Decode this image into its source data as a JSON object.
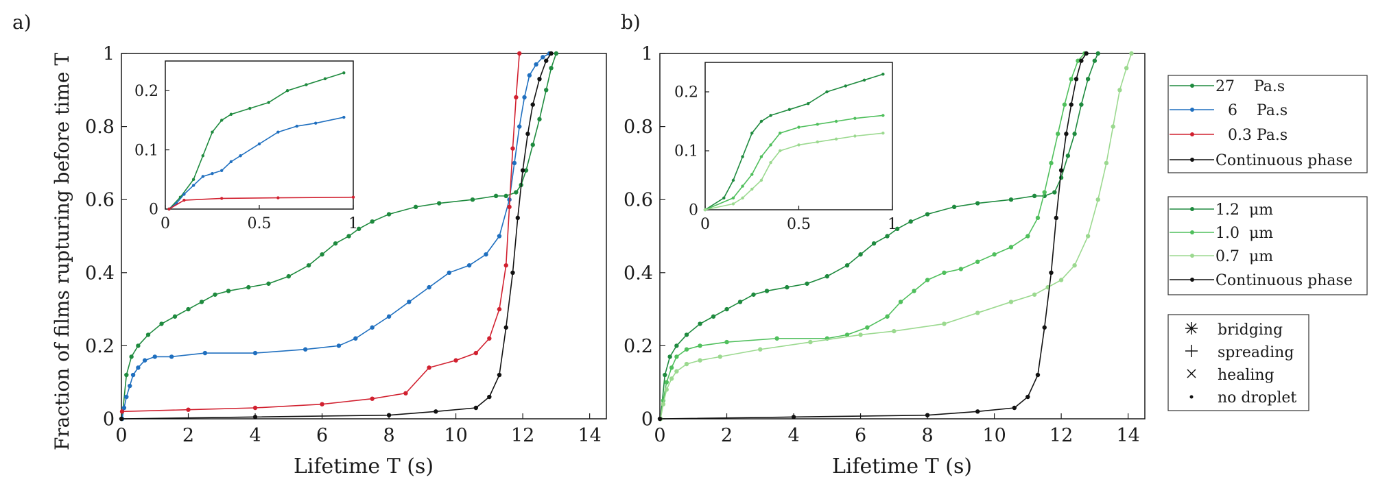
{
  "panel_labels": {
    "a": "a)",
    "b": "b)"
  },
  "axis_labels": {
    "ylabel": "Fraction of films rupturing before time T",
    "xlabel_a": "Lifetime T (s)",
    "xlabel_b": "Lifetime T (s)"
  },
  "legends": {
    "viscosity": [
      "27    Pa.s",
      "6    Pa.s",
      "0.3 Pa.s",
      "Continuous phase"
    ],
    "thickness": [
      "1.2  μm",
      "1.0  μm",
      "0.7  μm",
      "Continuous phase"
    ],
    "markers": [
      "bridging",
      "spreading",
      "healing",
      "no droplet"
    ]
  },
  "colors": {
    "dark_green": "#1e8a3e",
    "mid_green": "#4fbf5c",
    "light_green": "#9bd98f",
    "blue": "#1f6fbf",
    "red": "#d1202f",
    "black": "#111111",
    "blue_marker": "#4a92d6"
  },
  "chart_data": [
    {
      "type": "line",
      "panel": "a",
      "xlabel": "Lifetime T (s)",
      "ylabel": "Fraction of films rupturing before time T",
      "xlim": [
        0,
        14.5
      ],
      "ylim": [
        0,
        1
      ],
      "xticks": [
        0,
        2,
        4,
        6,
        8,
        10,
        12,
        14
      ],
      "yticks": [
        0,
        0.2,
        0.4,
        0.6,
        0.8,
        1
      ],
      "grid": false,
      "series": [
        {
          "name": "27    Pa.s",
          "color": "#1e8a3e",
          "x": [
            0.02,
            0.15,
            0.3,
            0.5,
            0.8,
            1.2,
            1.6,
            2.0,
            2.4,
            2.8,
            3.2,
            3.8,
            4.4,
            5.0,
            5.6,
            6.0,
            6.4,
            6.8,
            7.1,
            7.5,
            8.0,
            8.8,
            9.5,
            10.5,
            11.2,
            11.5,
            11.8,
            11.95,
            12.1,
            12.3,
            12.5,
            12.7,
            12.85,
            13.0
          ],
          "y": [
            0.0,
            0.12,
            0.17,
            0.2,
            0.23,
            0.26,
            0.28,
            0.3,
            0.32,
            0.34,
            0.35,
            0.36,
            0.37,
            0.39,
            0.42,
            0.45,
            0.48,
            0.5,
            0.52,
            0.54,
            0.56,
            0.58,
            0.59,
            0.6,
            0.61,
            0.61,
            0.62,
            0.64,
            0.68,
            0.75,
            0.82,
            0.9,
            0.96,
            1.0
          ]
        },
        {
          "name": "6    Pa.s",
          "color": "#1f6fbf",
          "x": [
            0.02,
            0.08,
            0.15,
            0.25,
            0.35,
            0.5,
            0.7,
            1.0,
            1.5,
            2.5,
            4.0,
            5.5,
            6.5,
            7.0,
            7.5,
            8.0,
            8.6,
            9.2,
            9.8,
            10.4,
            10.9,
            11.3,
            11.6,
            11.75,
            11.9,
            12.05,
            12.2,
            12.4,
            12.6,
            12.8
          ],
          "y": [
            0.0,
            0.03,
            0.06,
            0.09,
            0.12,
            0.14,
            0.16,
            0.17,
            0.17,
            0.18,
            0.18,
            0.19,
            0.2,
            0.22,
            0.25,
            0.28,
            0.32,
            0.36,
            0.4,
            0.42,
            0.45,
            0.5,
            0.6,
            0.7,
            0.8,
            0.88,
            0.94,
            0.97,
            0.99,
            1.0
          ]
        },
        {
          "name": "0.3 Pa.s",
          "color": "#d1202f",
          "x": [
            0.02,
            2.0,
            4.0,
            6.0,
            7.5,
            8.5,
            9.2,
            10.0,
            10.6,
            11.0,
            11.3,
            11.5,
            11.6,
            11.7,
            11.8,
            11.9
          ],
          "y": [
            0.02,
            0.025,
            0.03,
            0.04,
            0.055,
            0.07,
            0.14,
            0.16,
            0.18,
            0.22,
            0.3,
            0.42,
            0.58,
            0.74,
            0.88,
            1.0
          ]
        },
        {
          "name": "Continuous phase",
          "color": "#111111",
          "x": [
            0.0,
            4.0,
            8.0,
            9.4,
            10.6,
            11.0,
            11.3,
            11.5,
            11.7,
            11.85,
            12.0,
            12.15,
            12.3,
            12.5,
            12.7,
            12.85
          ],
          "y": [
            0.0,
            0.005,
            0.01,
            0.02,
            0.03,
            0.06,
            0.12,
            0.25,
            0.4,
            0.55,
            0.68,
            0.78,
            0.86,
            0.93,
            0.98,
            1.0
          ]
        }
      ],
      "inset": {
        "xlim": [
          0,
          1
        ],
        "ylim": [
          0,
          0.25
        ],
        "xticks": [
          0,
          0.5,
          1
        ],
        "yticks": [
          0,
          0.1,
          0.2
        ],
        "series": [
          {
            "name": "27    Pa.s",
            "color": "#1e8a3e",
            "x": [
              0.02,
              0.08,
              0.15,
              0.2,
              0.25,
              0.3,
              0.35,
              0.45,
              0.55,
              0.65,
              0.75,
              0.85,
              0.95
            ],
            "y": [
              0.0,
              0.02,
              0.05,
              0.09,
              0.13,
              0.15,
              0.16,
              0.17,
              0.18,
              0.2,
              0.21,
              0.22,
              0.23
            ]
          },
          {
            "name": "6    Pa.s",
            "color": "#1f6fbf",
            "x": [
              0.02,
              0.06,
              0.1,
              0.15,
              0.2,
              0.25,
              0.3,
              0.35,
              0.4,
              0.5,
              0.6,
              0.7,
              0.8,
              0.95
            ],
            "y": [
              0.0,
              0.01,
              0.025,
              0.04,
              0.055,
              0.06,
              0.065,
              0.08,
              0.09,
              0.11,
              0.13,
              0.14,
              0.145,
              0.155
            ]
          },
          {
            "name": "0.3 Pa.s",
            "color": "#d1202f",
            "x": [
              0.02,
              0.1,
              0.3,
              0.6,
              1.0
            ],
            "y": [
              0.0,
              0.015,
              0.018,
              0.019,
              0.02
            ]
          }
        ]
      }
    },
    {
      "type": "line",
      "panel": "b",
      "xlabel": "Lifetime T (s)",
      "xlim": [
        0,
        14.5
      ],
      "ylim": [
        0,
        1
      ],
      "xticks": [
        0,
        2,
        4,
        6,
        8,
        10,
        12,
        14
      ],
      "yticks": [
        0,
        0.2,
        0.4,
        0.6,
        0.8,
        1
      ],
      "grid": false,
      "series": [
        {
          "name": "1.2  μm",
          "color": "#1e8a3e",
          "x": [
            0.02,
            0.15,
            0.3,
            0.5,
            0.8,
            1.2,
            1.6,
            2.0,
            2.4,
            2.8,
            3.2,
            3.8,
            4.4,
            5.0,
            5.6,
            6.0,
            6.4,
            6.8,
            7.1,
            7.5,
            8.0,
            8.8,
            9.5,
            10.5,
            11.2,
            11.5,
            11.8,
            12.0,
            12.2,
            12.4,
            12.6,
            12.8,
            13.0,
            13.1
          ],
          "y": [
            0.0,
            0.12,
            0.17,
            0.2,
            0.23,
            0.26,
            0.28,
            0.3,
            0.32,
            0.34,
            0.35,
            0.36,
            0.37,
            0.39,
            0.42,
            0.45,
            0.48,
            0.5,
            0.52,
            0.54,
            0.56,
            0.58,
            0.59,
            0.6,
            0.61,
            0.61,
            0.62,
            0.66,
            0.72,
            0.78,
            0.86,
            0.93,
            0.98,
            1.0
          ]
        },
        {
          "name": "1.0  μm",
          "color": "#4fbf5c",
          "x": [
            0.02,
            0.1,
            0.2,
            0.35,
            0.5,
            0.8,
            1.2,
            2.0,
            3.5,
            5.0,
            5.6,
            6.2,
            6.8,
            7.2,
            7.6,
            8.0,
            8.5,
            9.0,
            9.5,
            10.0,
            10.5,
            11.0,
            11.3,
            11.5,
            11.7,
            11.9,
            12.1,
            12.3,
            12.5,
            12.7
          ],
          "y": [
            0.0,
            0.05,
            0.1,
            0.14,
            0.17,
            0.19,
            0.2,
            0.21,
            0.22,
            0.22,
            0.23,
            0.25,
            0.28,
            0.32,
            0.35,
            0.38,
            0.4,
            0.41,
            0.43,
            0.45,
            0.47,
            0.5,
            0.55,
            0.62,
            0.7,
            0.78,
            0.86,
            0.93,
            0.98,
            1.0
          ]
        },
        {
          "name": "0.7  μm",
          "color": "#9bd98f",
          "x": [
            0.02,
            0.1,
            0.2,
            0.35,
            0.5,
            0.8,
            1.2,
            1.8,
            3.0,
            4.5,
            6.0,
            7.0,
            8.5,
            9.5,
            10.5,
            11.2,
            11.6,
            12.0,
            12.4,
            12.8,
            13.1,
            13.35,
            13.55,
            13.75,
            13.95,
            14.1
          ],
          "y": [
            0.0,
            0.04,
            0.08,
            0.11,
            0.13,
            0.15,
            0.16,
            0.17,
            0.19,
            0.21,
            0.23,
            0.24,
            0.26,
            0.29,
            0.32,
            0.34,
            0.36,
            0.38,
            0.42,
            0.5,
            0.6,
            0.7,
            0.8,
            0.9,
            0.96,
            1.0
          ]
        },
        {
          "name": "Continuous phase",
          "color": "#111111",
          "x": [
            0.0,
            4.0,
            8.0,
            9.5,
            10.6,
            11.0,
            11.3,
            11.5,
            11.7,
            11.85,
            12.0,
            12.15,
            12.3,
            12.45,
            12.6,
            12.75
          ],
          "y": [
            0.0,
            0.005,
            0.01,
            0.02,
            0.03,
            0.06,
            0.12,
            0.25,
            0.4,
            0.55,
            0.68,
            0.78,
            0.86,
            0.93,
            0.98,
            1.0
          ]
        }
      ],
      "inset": {
        "xlim": [
          0,
          1
        ],
        "ylim": [
          0,
          0.25
        ],
        "xticks": [
          0,
          0.5,
          1
        ],
        "yticks": [
          0,
          0.1,
          0.2
        ],
        "series": [
          {
            "name": "1.2  μm",
            "color": "#1e8a3e",
            "x": [
              0.0,
              0.1,
              0.15,
              0.2,
              0.25,
              0.3,
              0.35,
              0.45,
              0.55,
              0.65,
              0.75,
              0.85,
              0.95
            ],
            "y": [
              0.0,
              0.02,
              0.05,
              0.09,
              0.13,
              0.15,
              0.16,
              0.17,
              0.18,
              0.2,
              0.21,
              0.22,
              0.23
            ]
          },
          {
            "name": "1.0  μm",
            "color": "#4fbf5c",
            "x": [
              0.0,
              0.15,
              0.2,
              0.25,
              0.3,
              0.35,
              0.4,
              0.5,
              0.6,
              0.7,
              0.8,
              0.95
            ],
            "y": [
              0.0,
              0.02,
              0.04,
              0.06,
              0.09,
              0.11,
              0.13,
              0.14,
              0.145,
              0.15,
              0.155,
              0.16
            ]
          },
          {
            "name": "0.7  μm",
            "color": "#9bd98f",
            "x": [
              0.0,
              0.15,
              0.2,
              0.25,
              0.3,
              0.35,
              0.4,
              0.5,
              0.6,
              0.7,
              0.8,
              0.95
            ],
            "y": [
              0.0,
              0.01,
              0.02,
              0.035,
              0.05,
              0.08,
              0.1,
              0.11,
              0.115,
              0.12,
              0.125,
              0.13
            ]
          }
        ]
      }
    }
  ]
}
